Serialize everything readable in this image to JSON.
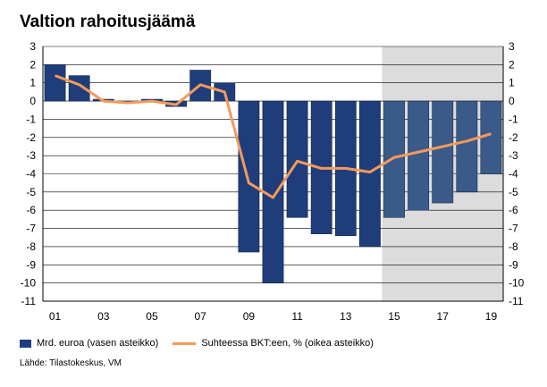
{
  "chart_data": {
    "type": "bar",
    "title": "Valtion rahoitusjäämä",
    "x": [
      2001,
      2002,
      2003,
      2004,
      2005,
      2006,
      2007,
      2008,
      2009,
      2010,
      2011,
      2012,
      2013,
      2014,
      2015,
      2016,
      2017,
      2018,
      2019
    ],
    "xticks": [
      "01",
      "03",
      "05",
      "07",
      "09",
      "11",
      "13",
      "15",
      "17",
      "19"
    ],
    "xtick_values": [
      2001,
      2003,
      2005,
      2007,
      2009,
      2011,
      2013,
      2015,
      2017,
      2019
    ],
    "yticks_left": [
      "3",
      "2",
      "1",
      "0",
      "-1",
      "-2",
      "-3",
      "-4",
      "-5",
      "-6",
      "-7",
      "-8",
      "-9",
      "-10",
      "-11"
    ],
    "yticks_right": [
      "3",
      "2",
      "1",
      "0",
      "-1",
      "-2",
      "-3",
      "-4",
      "-5",
      "-6",
      "-7",
      "-8",
      "-9",
      "-10",
      "-11"
    ],
    "ylim": [
      -11,
      3
    ],
    "forecast_from": 2015,
    "grid": true,
    "series": [
      {
        "name": "Mrd. euroa (vasen asteikko)",
        "type": "bar",
        "axis": "left",
        "color": "#1f3d7a",
        "forecast_color": "#3a5a8a",
        "values": [
          2.0,
          1.4,
          0.1,
          -0.1,
          0.1,
          -0.3,
          1.7,
          1.0,
          -8.3,
          -10.0,
          -6.4,
          -7.3,
          -7.4,
          -8.0,
          -6.4,
          -6.0,
          -5.6,
          -5.0,
          -4.0
        ]
      },
      {
        "name": "Suhteessa BKT:een, % (oikea asteikko)",
        "type": "line",
        "axis": "right",
        "color": "#f39a5b",
        "values": [
          1.4,
          0.9,
          0.0,
          -0.1,
          0.0,
          -0.2,
          0.9,
          0.5,
          -4.5,
          -5.3,
          -3.3,
          -3.7,
          -3.7,
          -3.9,
          -3.1,
          -2.8,
          -2.5,
          -2.2,
          -1.8
        ]
      }
    ],
    "source": "Lähde: Tilastokeskus, VM"
  },
  "colors": {
    "forecast_shade": "#dcdcdc",
    "grid": "#000000"
  }
}
